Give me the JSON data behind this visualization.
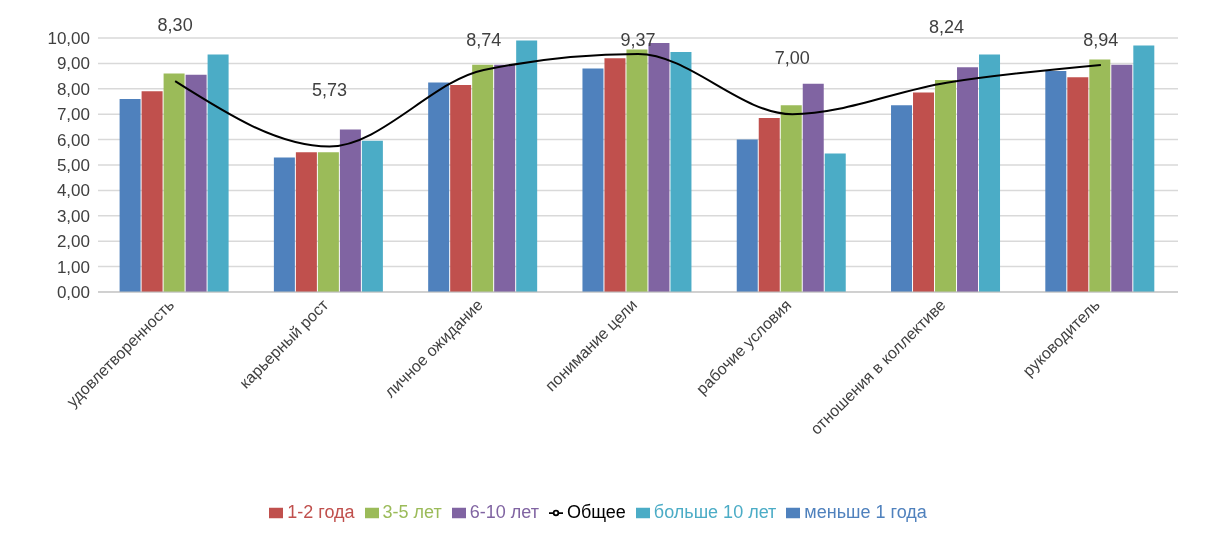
{
  "chart_data": {
    "type": "bar",
    "categories": [
      "удовлетворенность",
      "карьерный рост",
      "личное ожидание",
      "понимание цели",
      "рабочие условия",
      "отношения в коллективе",
      "руководитель"
    ],
    "series": [
      {
        "name": "меньше 1 года",
        "color": "#4f81bd",
        "values": [
          7.6,
          5.3,
          8.25,
          8.8,
          6.0,
          7.35,
          8.7
        ]
      },
      {
        "name": "1-2 года",
        "color": "#c0504d",
        "values": [
          7.9,
          5.5,
          8.15,
          9.2,
          6.85,
          7.85,
          8.45
        ]
      },
      {
        "name": "3-5 лет",
        "color": "#9bbb59",
        "values": [
          8.6,
          5.5,
          8.95,
          9.55,
          7.35,
          8.35,
          9.15
        ]
      },
      {
        "name": "6-10 лет",
        "color": "#8064a2",
        "values": [
          8.55,
          6.4,
          8.95,
          9.8,
          8.2,
          8.85,
          8.95
        ]
      },
      {
        "name": "больше 10 лет",
        "color": "#4bacc6",
        "values": [
          9.35,
          5.95,
          9.9,
          9.45,
          5.45,
          9.35,
          9.7
        ]
      },
      {
        "name": "Общее",
        "type": "line",
        "color": "#000000",
        "values": [
          8.3,
          5.73,
          8.74,
          9.37,
          7.0,
          8.24,
          8.94
        ],
        "value_labels": [
          "8,30",
          "5,73",
          "8,74",
          "9,37",
          "7,00",
          "8,24",
          "8,94"
        ]
      }
    ],
    "ylim": [
      0,
      10
    ],
    "yticks": [
      {
        "value": 0,
        "label": "0,00"
      },
      {
        "value": 1,
        "label": "1,00"
      },
      {
        "value": 2,
        "label": "2,00"
      },
      {
        "value": 3,
        "label": "3,00"
      },
      {
        "value": 4,
        "label": "4,00"
      },
      {
        "value": 5,
        "label": "5,00"
      },
      {
        "value": 6,
        "label": "6,00"
      },
      {
        "value": 7,
        "label": "7,00"
      },
      {
        "value": 8,
        "label": "8,00"
      },
      {
        "value": 9,
        "label": "9,00"
      },
      {
        "value": 10,
        "label": "10,00"
      }
    ],
    "grid": "y",
    "legend": "bottom",
    "marker": "none",
    "line_style": "solid"
  }
}
